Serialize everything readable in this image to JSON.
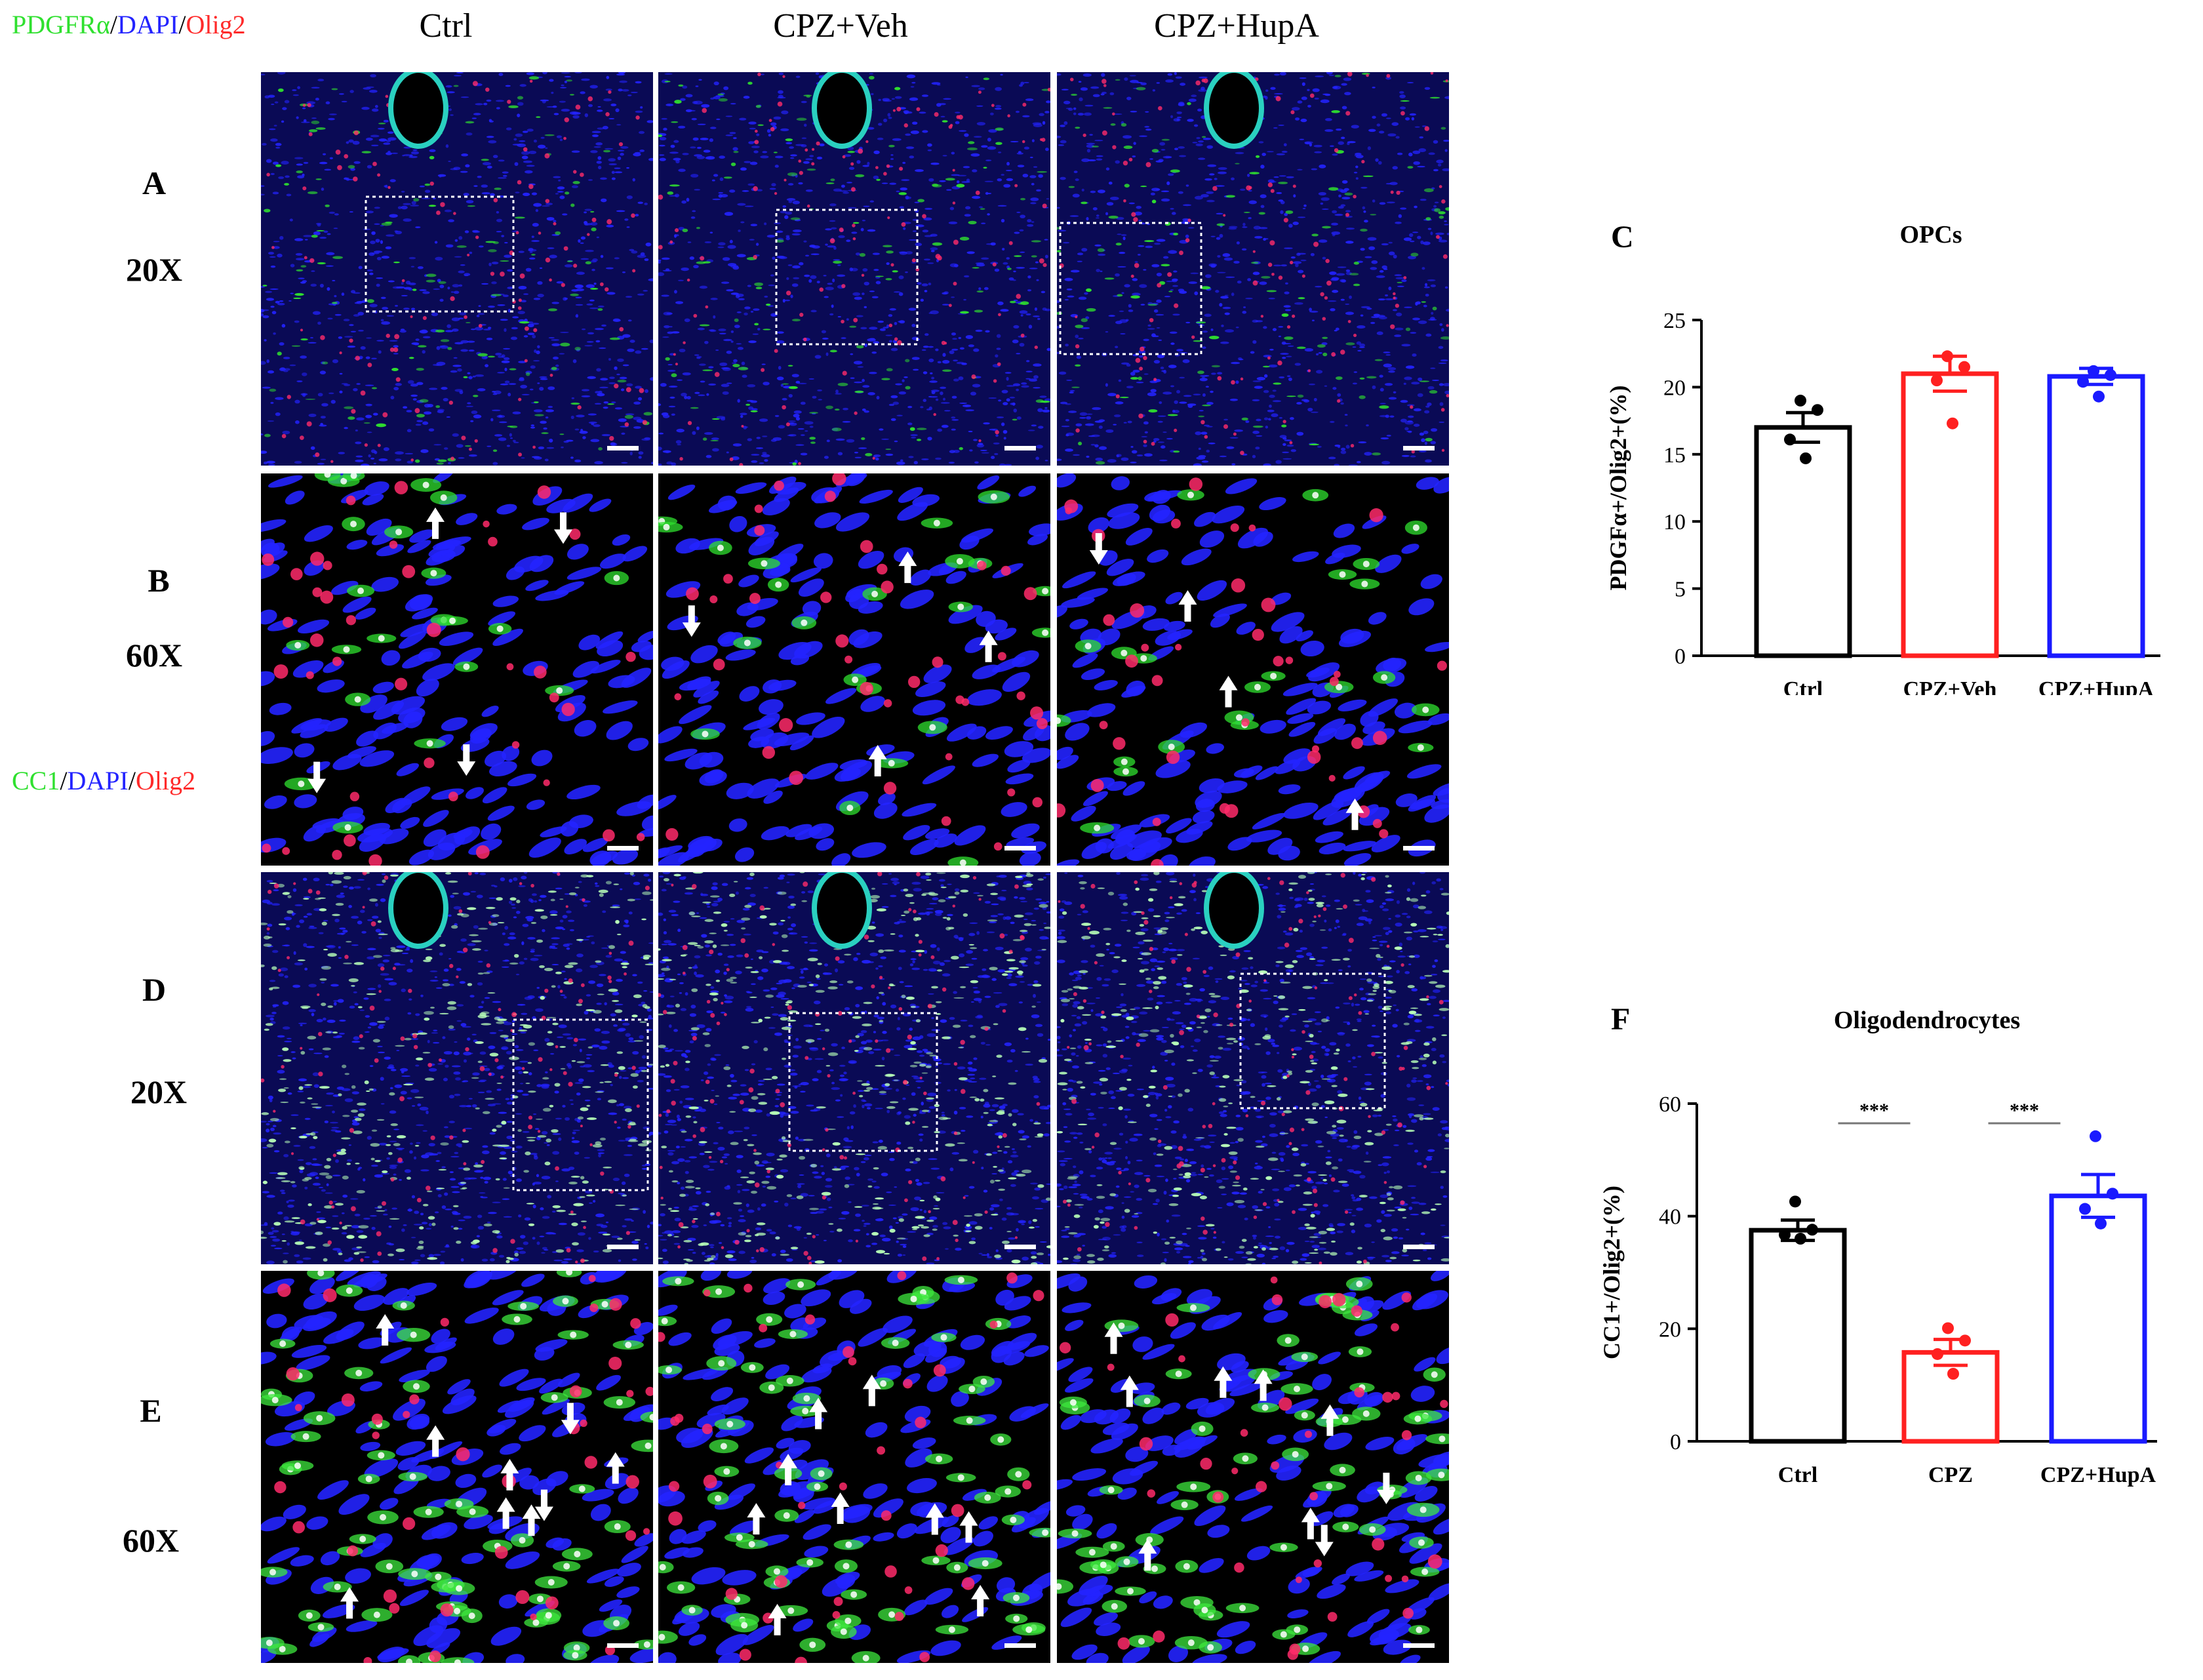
{
  "figure": {
    "stain_legend_top": {
      "marker": "PDGFRα",
      "sep1": "/",
      "dapi": "DAPI",
      "sep2": "/",
      "olig": "Olig2"
    },
    "stain_legend_bottom": {
      "marker": "CC1",
      "sep1": "/",
      "dapi": "DAPI",
      "sep2": "/",
      "olig": "Olig2"
    },
    "column_headers": [
      "Ctrl",
      "CPZ+Veh",
      "CPZ+HupA"
    ],
    "row_labels": {
      "A": {
        "letter": "A",
        "mag": "20X"
      },
      "B": {
        "letter": "B",
        "mag": "60X"
      },
      "D": {
        "letter": "D",
        "mag": "20X"
      },
      "E": {
        "letter": "E",
        "mag": "60X"
      }
    },
    "panel_C_letter": "C",
    "panel_F_letter": "F",
    "colors": {
      "ctrl": "#000000",
      "cpz": "#ff2020",
      "hupa": "#1a1aff",
      "dapi": "#2323ff",
      "marker": "#2fe02f",
      "olig2": "#ff2a6a"
    }
  },
  "chart_data": [
    {
      "type": "bar",
      "title": "OPCs",
      "ylabel": "PDGFα+/Olig2+(%)",
      "xlabel": "",
      "categories": [
        "Ctrl",
        "CPZ+Veh",
        "CPZ+HupA"
      ],
      "values": [
        17.0,
        21.0,
        20.8
      ],
      "sem": [
        1.1,
        1.3,
        0.6
      ],
      "points": [
        [
          19.0,
          18.3,
          16.1,
          14.7
        ],
        [
          22.3,
          21.5,
          20.5,
          17.3
        ],
        [
          21.2,
          20.9,
          20.4,
          19.3
        ]
      ],
      "ylim": [
        0,
        25
      ],
      "yticks": [
        "0",
        "5",
        "10",
        "15",
        "20",
        "25"
      ],
      "bar_colors": [
        "#000000",
        "#ff2020",
        "#1a1aff"
      ],
      "significance": []
    },
    {
      "type": "bar",
      "title": "Oligodendrocytes",
      "ylabel": "CC1+/Olig2+(%)",
      "xlabel": "",
      "categories": [
        "Ctrl",
        "CPZ",
        "CPZ+HupA"
      ],
      "values": [
        37.5,
        15.8,
        43.6
      ],
      "sem": [
        1.8,
        2.3,
        3.8
      ],
      "points": [
        [
          42.6,
          37.6,
          36.7,
          36.0
        ],
        [
          20.1,
          17.9,
          15.5,
          12.0
        ],
        [
          54.2,
          44.0,
          41.3,
          38.7
        ]
      ],
      "ylim": [
        0,
        60
      ],
      "yticks": [
        "0",
        "20",
        "40",
        "60"
      ],
      "bar_colors": [
        "#000000",
        "#ff2020",
        "#1a1aff"
      ],
      "significance": [
        "***",
        "***"
      ]
    }
  ]
}
